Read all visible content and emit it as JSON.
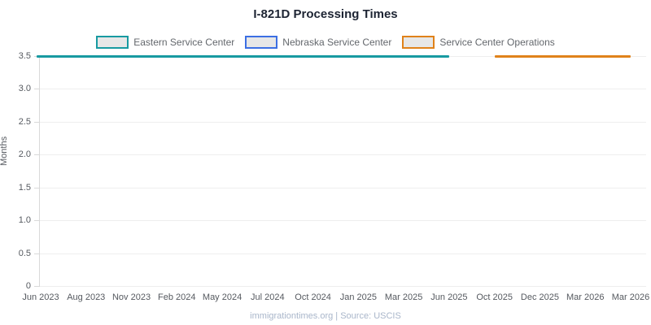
{
  "header": {
    "title": "I-821D Processing Times"
  },
  "footer": {
    "text": "immigrationtimes.org | Source: USCIS"
  },
  "colors": {
    "teal": "#189aa1",
    "blue": "#3c6fe3",
    "orange": "#e0821a",
    "title_text": "#1d2433",
    "axis_text": "#55595f",
    "grid": "#eeeeee",
    "axis_line": "#d9d9d9",
    "legend_fill": "#e7e7e7",
    "legend_text": "#63676c",
    "footer_text": "#a9b6ca"
  },
  "chart_data": {
    "type": "line",
    "title": "I-821D Processing Times",
    "xlabel": "",
    "ylabel": "Months",
    "ylim": [
      0,
      3.5
    ],
    "yticks": [
      0,
      0.5,
      1,
      1.5,
      2,
      2.5,
      3,
      3.5
    ],
    "ytick_labels": [
      "0",
      "0.5",
      "1.0",
      "1.5",
      "2.0",
      "2.5",
      "3.0",
      "3.5"
    ],
    "grid": "horizontal",
    "legend_position": "top",
    "categories": [
      "Jun 2023",
      "Aug 2023",
      "Nov 2023",
      "Feb 2024",
      "May 2024",
      "Jul 2024",
      "Oct 2024",
      "Jan 2025",
      "Mar 2025",
      "Jun 2025",
      "Oct 2025",
      "Dec 2025",
      "Mar 2026",
      "Mar 2026"
    ],
    "series": [
      {
        "name": "Eastern Service Center",
        "color": "#189aa1",
        "segments": [
          {
            "start_index": 0,
            "end_index": 9,
            "start_label": "Jun 2023",
            "end_label": "Jun 2025",
            "value": 3.5
          }
        ]
      },
      {
        "name": "Nebraska Service Center",
        "color": "#3c6fe3",
        "segments": []
      },
      {
        "name": "Service Center Operations",
        "color": "#e0821a",
        "segments": [
          {
            "start_index": 10,
            "end_index": 13,
            "start_label": "Oct 2025",
            "end_label": "Mar 2026",
            "value": 3.5
          }
        ]
      }
    ]
  }
}
